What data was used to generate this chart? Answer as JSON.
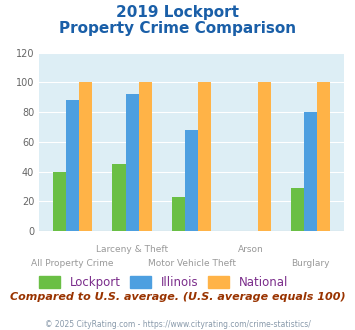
{
  "title_line1": "2019 Lockport",
  "title_line2": "Property Crime Comparison",
  "lockport": [
    40,
    45,
    23,
    0,
    29
  ],
  "illinois": [
    88,
    92,
    68,
    0,
    80
  ],
  "national": [
    100,
    100,
    100,
    100,
    100
  ],
  "lockport_color": "#6abf45",
  "illinois_color": "#4d9fe0",
  "national_color": "#ffb347",
  "bg_color": "#ddeef5",
  "title_color": "#1a5fa8",
  "label_color": "#999999",
  "footer_note": "Compared to U.S. average. (U.S. average equals 100)",
  "footer_copy": "© 2025 CityRating.com - https://www.cityrating.com/crime-statistics/",
  "legend_color": "#7b2d8b",
  "ylim": [
    0,
    120
  ],
  "yticks": [
    0,
    20,
    40,
    60,
    80,
    100,
    120
  ],
  "top_labels": [
    [
      1,
      "Larceny & Theft"
    ],
    [
      3,
      "Arson"
    ]
  ],
  "bot_labels": [
    [
      0,
      "All Property Crime"
    ],
    [
      2,
      "Motor Vehicle Theft"
    ],
    [
      4,
      "Burglary"
    ]
  ]
}
